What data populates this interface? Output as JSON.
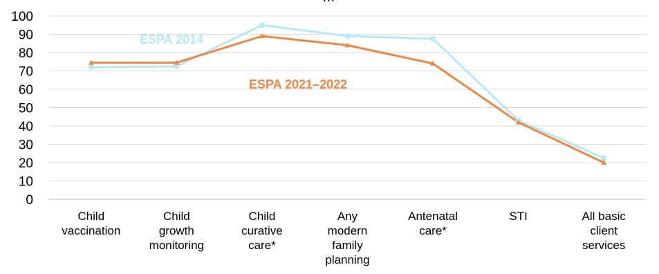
{
  "chart_data": {
    "type": "line",
    "title": "…",
    "ylim": [
      0,
      100
    ],
    "yticks": [
      0,
      10,
      20,
      30,
      40,
      50,
      60,
      70,
      80,
      90,
      100
    ],
    "grid": true,
    "categories": [
      [
        "Child",
        "vaccination"
      ],
      [
        "Child",
        "growth",
        "monitoring"
      ],
      [
        "Child",
        "curative",
        "care*"
      ],
      [
        "Any",
        "modern",
        "family",
        "planning"
      ],
      [
        "Antenatal",
        "care*"
      ],
      [
        "STI"
      ],
      [
        "All basic",
        "client",
        "services"
      ]
    ],
    "series": [
      {
        "name": "ESPA 2014",
        "color": "#b3eaf7",
        "marker": "square",
        "values": [
          72,
          72.5,
          95,
          89,
          87.5,
          43,
          22.5
        ]
      },
      {
        "name": "ESPA 2021–2022",
        "color": "#ef8642",
        "marker": "triangle",
        "values": [
          74.5,
          74.5,
          89,
          84,
          74,
          42,
          20
        ]
      }
    ]
  }
}
